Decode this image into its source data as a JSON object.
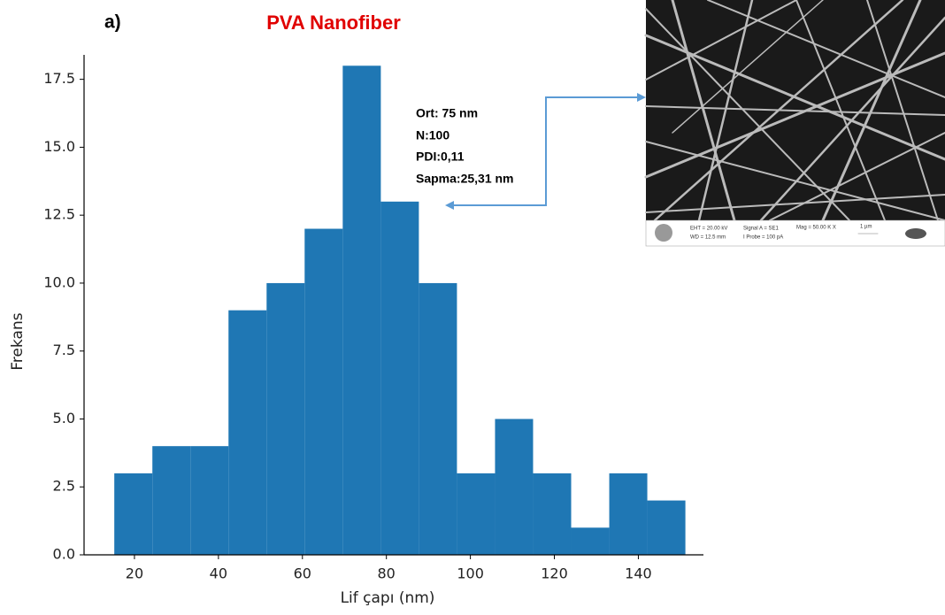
{
  "chart_data": {
    "type": "histogram",
    "panel_label": "a)",
    "title": "PVA Nanofiber",
    "title_color": "#e00000",
    "x_label": "Lif çapı (nm)",
    "y_label": "Frekans",
    "bins": [
      15.2,
      24.27,
      33.33,
      42.4,
      51.47,
      60.53,
      69.6,
      78.67,
      87.73,
      96.8,
      105.87,
      114.93,
      124.0,
      133.07,
      142.13,
      151.2
    ],
    "values": [
      3,
      4,
      4,
      9,
      10,
      12,
      18,
      13,
      10,
      3,
      5,
      3,
      1,
      3,
      2
    ],
    "color": "#1f77b4",
    "xlim": [
      8,
      155.5
    ],
    "ylim": [
      0,
      18.4
    ],
    "xticks": [
      20,
      40,
      60,
      80,
      100,
      120,
      140
    ],
    "yticks": [
      {
        "value": 0,
        "label": "0.0"
      },
      2.5,
      {
        "value": 5,
        "label": "5.0"
      },
      7.5,
      {
        "value": 10,
        "label": "10.0"
      },
      12.5,
      {
        "value": 15,
        "label": "15.0"
      },
      17.5
    ],
    "grid": false,
    "annotations": [
      "Ort: 75 nm",
      "N:100",
      "PDI:0,11",
      "Sapma:25,31 nm"
    ],
    "inset_labels": [
      "EHT = 20.00 kV",
      "WD = 12.5 mm",
      "Signal A = SE1",
      "I Probe =   100 pA",
      "Mag =  50.00 K X",
      "1 µm"
    ]
  }
}
